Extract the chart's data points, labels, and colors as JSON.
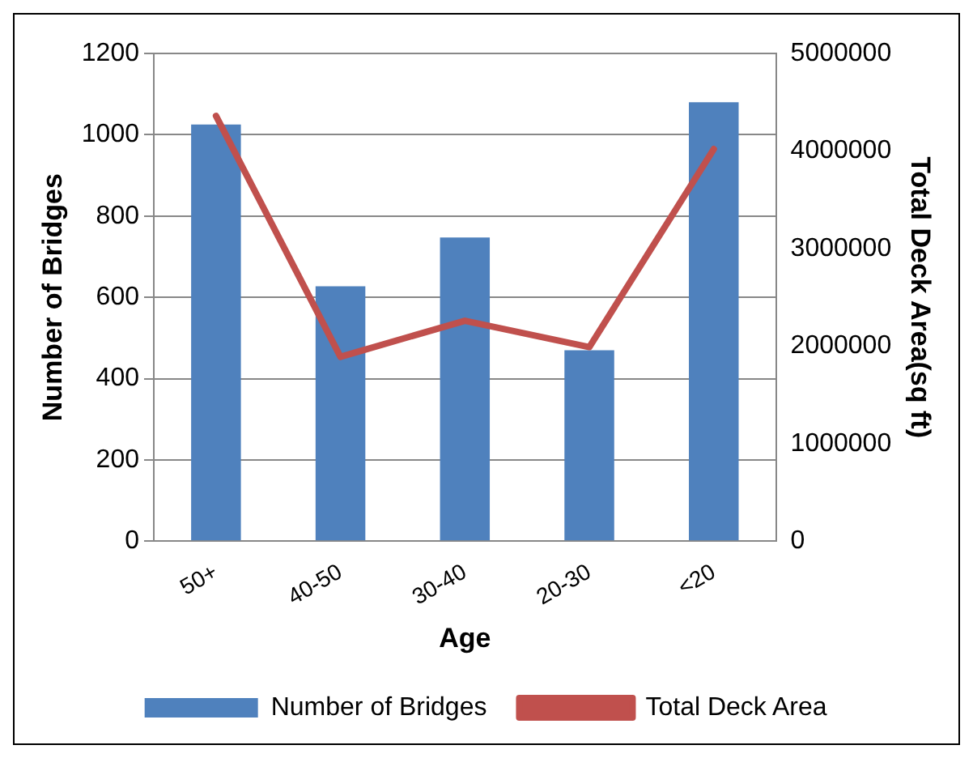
{
  "chart_data": {
    "type": "bar",
    "xlabel": "Age",
    "ylabel": "Number of Bridges",
    "y2label": "Total Deck Area(sq ft)",
    "categories": [
      "50+",
      "40-50",
      "30-40",
      "20-30",
      "<20"
    ],
    "series": [
      {
        "name": "Number of Bridges",
        "color": "#4f81bd",
        "values": [
          1025,
          627,
          747,
          470,
          1080
        ]
      },
      {
        "name": "Total Deck Area",
        "type": "line",
        "axis": "y2",
        "color": "#c0504d",
        "values": [
          4360000,
          1890000,
          2260000,
          1990000,
          4020000
        ]
      }
    ],
    "ylim": [
      0,
      1200
    ],
    "yticks": [
      0,
      200,
      400,
      600,
      800,
      1000,
      1200
    ],
    "y2lim": [
      0,
      5000000
    ],
    "y2ticks": [
      0,
      1000000,
      2000000,
      3000000,
      4000000,
      5000000
    ],
    "grid": "y",
    "legend": "bottom",
    "marker": "none"
  }
}
